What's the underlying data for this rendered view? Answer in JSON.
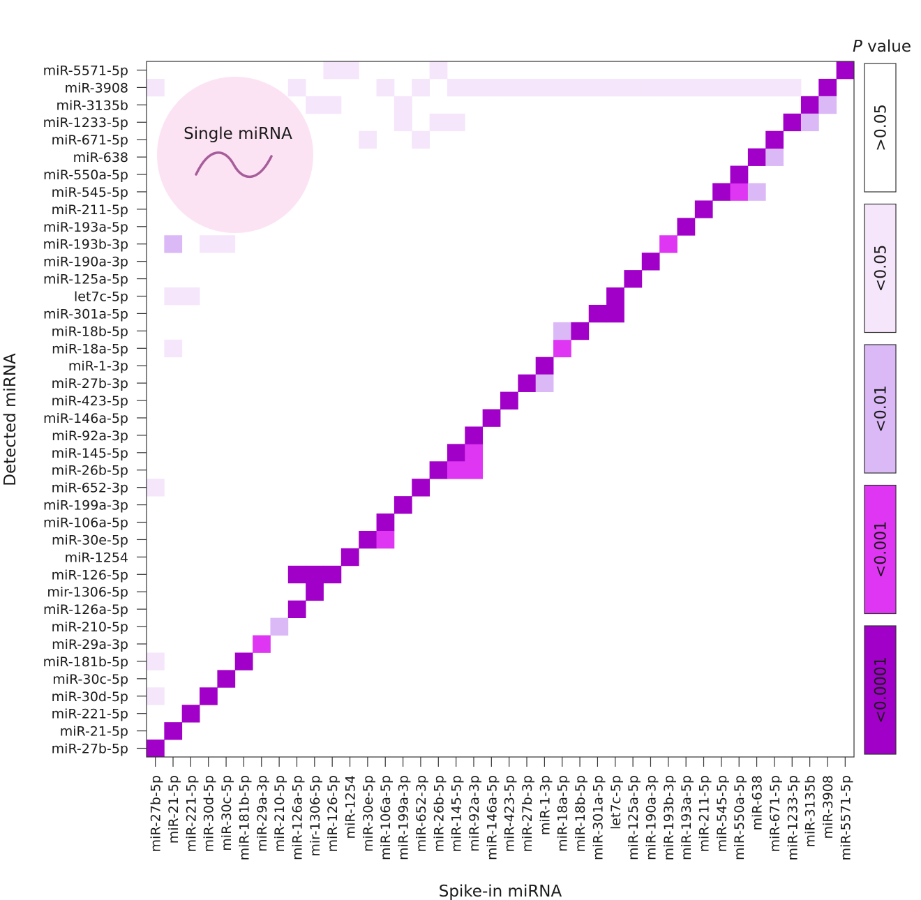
{
  "chart_data": {
    "type": "heatmap",
    "xlabel": "Spike-in miRNA",
    "ylabel": "Detected miRNA",
    "x_categories": [
      "miR-27b-5p",
      "miR-21-5p",
      "miR-221-5p",
      "miR-30d-5p",
      "miR-30c-5p",
      "miR-181b-5p",
      "miR-29a-3p",
      "miR-210-5p",
      "miR-126a-5p",
      "mir-1306-5p",
      "miR-126-5p",
      "miR-1254",
      "miR-30e-5p",
      "miR-106a-5p",
      "miR-199a-3p",
      "miR-652-3p",
      "miR-26b-5p",
      "miR-145-5p",
      "miR-92a-3p",
      "miR-146a-5p",
      "miR-423-5p",
      "miR-27b-3p",
      "miR-1-3p",
      "miR-18a-5p",
      "miR-18b-5p",
      "miR-301a-5p",
      "let7c-5p",
      "miR-125a-5p",
      "miR-190a-3p",
      "miR-193b-3p",
      "miR-193a-5p",
      "miR-211-5p",
      "miR-545-5p",
      "miR-550a-5p",
      "miR-638",
      "miR-671-5p",
      "miR-1233-5p",
      "miR-3135b",
      "miR-3908",
      "miR-5571-5p"
    ],
    "y_categories": [
      "miR-27b-5p",
      "miR-21-5p",
      "miR-221-5p",
      "miR-30d-5p",
      "miR-30c-5p",
      "miR-181b-5p",
      "miR-29a-3p",
      "miR-210-5p",
      "miR-126a-5p",
      "mir-1306-5p",
      "miR-126-5p",
      "miR-1254",
      "miR-30e-5p",
      "miR-106a-5p",
      "miR-199a-3p",
      "miR-652-3p",
      "miR-26b-5p",
      "miR-145-5p",
      "miR-92a-3p",
      "miR-146a-5p",
      "miR-423-5p",
      "miR-27b-3p",
      "miR-1-3p",
      "miR-18a-5p",
      "miR-18b-5p",
      "miR-301a-5p",
      "let7c-5p",
      "miR-125a-5p",
      "miR-190a-3p",
      "miR-193b-3p",
      "miR-193a-5p",
      "miR-211-5p",
      "miR-545-5p",
      "miR-550a-5p",
      "miR-638",
      "miR-671-5p",
      "miR-1233-5p",
      "miR-3135b",
      "miR-3908",
      "miR-5571-5p"
    ],
    "legend": {
      "title_italic": "P",
      "title_rest": " value",
      "levels": [
        {
          "label": ">0.05",
          "color": "#ffffff"
        },
        {
          "label": "<0.05",
          "color": "#f5e6fb"
        },
        {
          "label": "<0.01",
          "color": "#dbb8f6"
        },
        {
          "label": "<0.001",
          "color": "#df36f3"
        },
        {
          "label": "<0.0001",
          "color": "#a100c8"
        }
      ]
    },
    "cells_note_levels": "level index: 1=<0.05, 2=<0.01, 3=<0.001, 4=<0.0001",
    "cells": [
      [
        0,
        0,
        4
      ],
      [
        1,
        1,
        4
      ],
      [
        2,
        2,
        4
      ],
      [
        3,
        3,
        4
      ],
      [
        4,
        4,
        4
      ],
      [
        5,
        5,
        4
      ],
      [
        6,
        6,
        3
      ],
      [
        7,
        7,
        2
      ],
      [
        8,
        8,
        4
      ],
      [
        9,
        9,
        4
      ],
      [
        8,
        10,
        4
      ],
      [
        9,
        10,
        4
      ],
      [
        10,
        10,
        4
      ],
      [
        11,
        11,
        4
      ],
      [
        12,
        12,
        4
      ],
      [
        13,
        13,
        4
      ],
      [
        13,
        12,
        3
      ],
      [
        14,
        14,
        4
      ],
      [
        15,
        15,
        4
      ],
      [
        16,
        16,
        4
      ],
      [
        17,
        17,
        4
      ],
      [
        17,
        16,
        3
      ],
      [
        18,
        16,
        3
      ],
      [
        18,
        17,
        3
      ],
      [
        18,
        18,
        4
      ],
      [
        19,
        19,
        4
      ],
      [
        20,
        20,
        4
      ],
      [
        21,
        21,
        4
      ],
      [
        22,
        22,
        4
      ],
      [
        22,
        21,
        2
      ],
      [
        23,
        23,
        3
      ],
      [
        23,
        24,
        2
      ],
      [
        24,
        24,
        4
      ],
      [
        25,
        25,
        4
      ],
      [
        26,
        25,
        4
      ],
      [
        26,
        26,
        4
      ],
      [
        27,
        27,
        4
      ],
      [
        28,
        28,
        4
      ],
      [
        29,
        29,
        3
      ],
      [
        30,
        30,
        4
      ],
      [
        31,
        31,
        4
      ],
      [
        32,
        32,
        4
      ],
      [
        33,
        32,
        3
      ],
      [
        33,
        33,
        4
      ],
      [
        34,
        32,
        2
      ],
      [
        34,
        34,
        4
      ],
      [
        35,
        34,
        2
      ],
      [
        35,
        35,
        4
      ],
      [
        36,
        36,
        4
      ],
      [
        37,
        37,
        4
      ],
      [
        37,
        36,
        2
      ],
      [
        38,
        38,
        4
      ],
      [
        38,
        37,
        2
      ],
      [
        39,
        39,
        4
      ],
      [
        0,
        3,
        1
      ],
      [
        0,
        5,
        1
      ],
      [
        0,
        15,
        1
      ],
      [
        0,
        38,
        1
      ],
      [
        1,
        26,
        1
      ],
      [
        1,
        23,
        1
      ],
      [
        1,
        29,
        2
      ],
      [
        2,
        34,
        1
      ],
      [
        2,
        35,
        1
      ],
      [
        2,
        26,
        1
      ],
      [
        3,
        29,
        1
      ],
      [
        3,
        31,
        1
      ],
      [
        4,
        29,
        1
      ],
      [
        4,
        37,
        1
      ],
      [
        5,
        31,
        1
      ],
      [
        5,
        37,
        1
      ],
      [
        6,
        36,
        1
      ],
      [
        6,
        37,
        1
      ],
      [
        7,
        34,
        1
      ],
      [
        8,
        38,
        1
      ],
      [
        9,
        37,
        1
      ],
      [
        10,
        37,
        1
      ],
      [
        10,
        39,
        1
      ],
      [
        11,
        39,
        1
      ],
      [
        12,
        35,
        1
      ],
      [
        13,
        38,
        1
      ],
      [
        14,
        37,
        1
      ],
      [
        14,
        36,
        1
      ],
      [
        15,
        35,
        1
      ],
      [
        15,
        35,
        1
      ],
      [
        15,
        38,
        1
      ],
      [
        16,
        36,
        1
      ],
      [
        16,
        39,
        1
      ],
      [
        17,
        36,
        1
      ],
      [
        17,
        38,
        1
      ],
      [
        18,
        38,
        1
      ],
      [
        19,
        38,
        1
      ],
      [
        20,
        38,
        1
      ],
      [
        21,
        38,
        1
      ],
      [
        22,
        38,
        1
      ],
      [
        23,
        38,
        1
      ],
      [
        24,
        38,
        1
      ],
      [
        25,
        38,
        1
      ],
      [
        26,
        38,
        1
      ],
      [
        27,
        38,
        1
      ],
      [
        28,
        38,
        1
      ],
      [
        29,
        38,
        1
      ],
      [
        30,
        38,
        1
      ],
      [
        31,
        38,
        1
      ],
      [
        32,
        38,
        1
      ],
      [
        33,
        38,
        1
      ],
      [
        34,
        38,
        1
      ],
      [
        35,
        38,
        1
      ],
      [
        36,
        38,
        1
      ]
    ]
  },
  "inset": {
    "label": "Single miRNA",
    "fill_color": "#fce3f3",
    "wave_color": "#a65e9b"
  }
}
